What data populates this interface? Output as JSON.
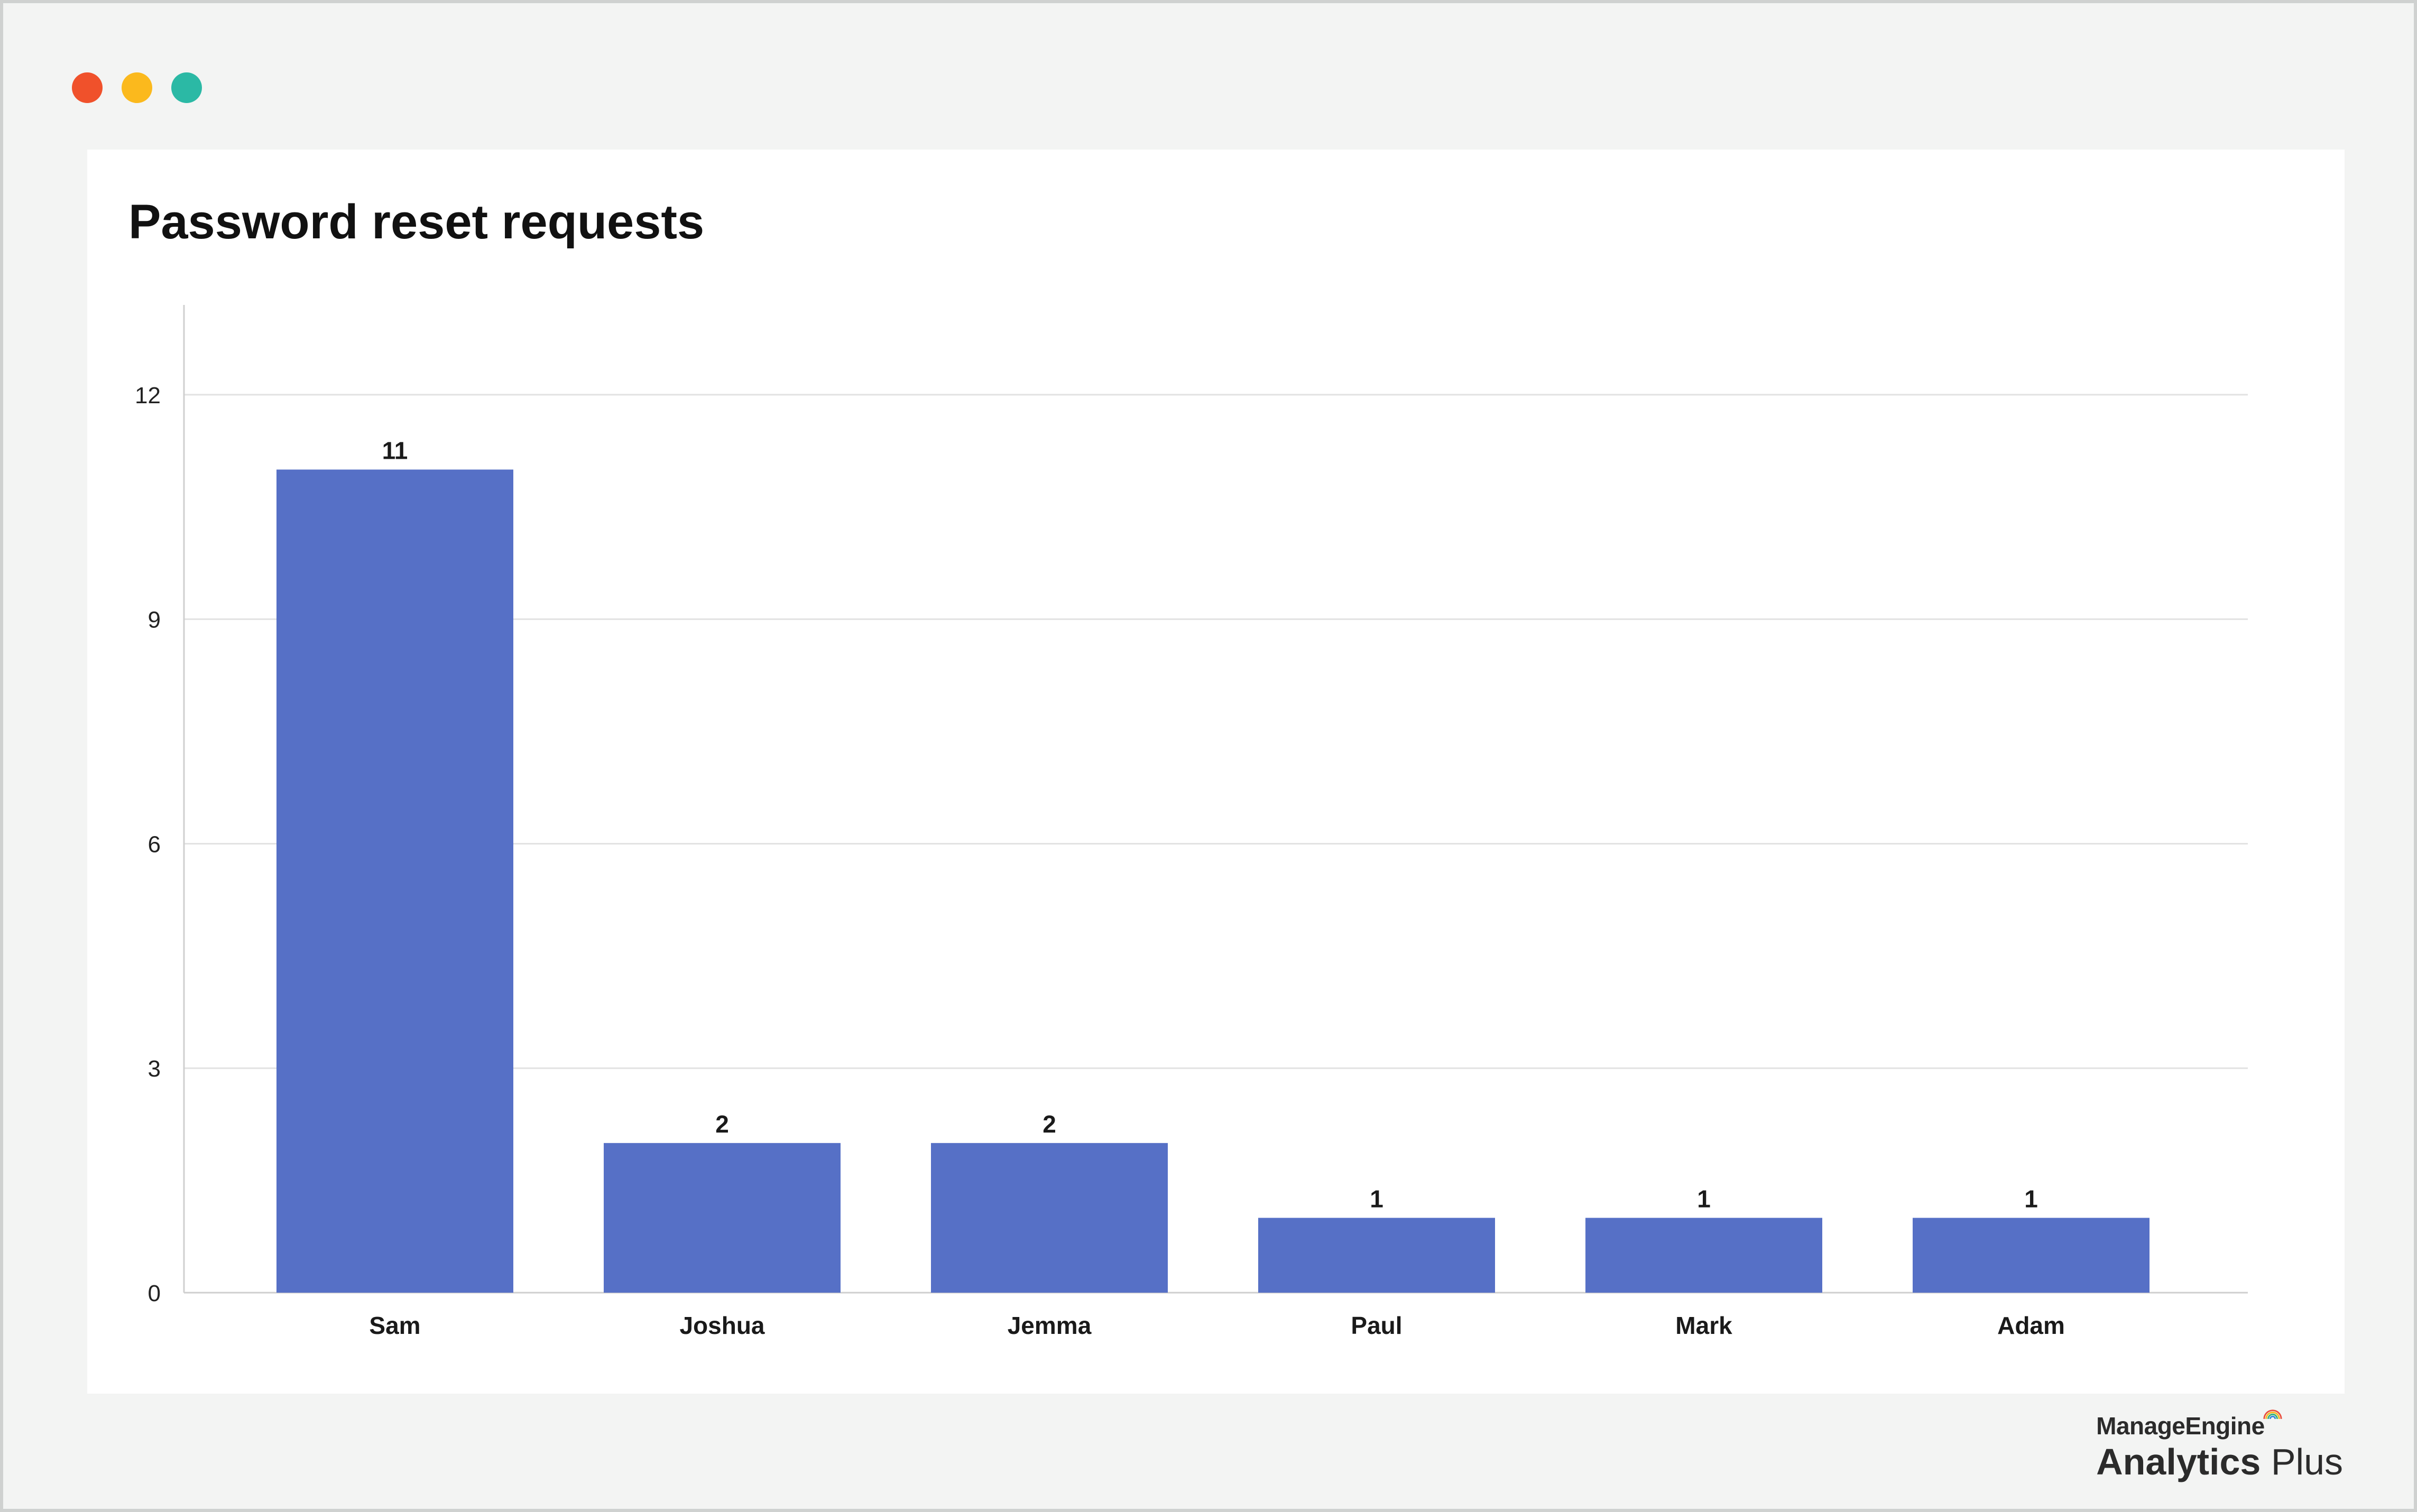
{
  "window": {
    "traffic_lights": [
      {
        "name": "close",
        "color": "#f0512b"
      },
      {
        "name": "minimize",
        "color": "#fbb91d"
      },
      {
        "name": "maximize",
        "color": "#2bb9a5"
      }
    ]
  },
  "chart_data": {
    "type": "bar",
    "title": "Password reset requests",
    "xlabel": "",
    "ylabel": "",
    "categories": [
      "Sam",
      "Joshua",
      "Jemma",
      "Paul",
      "Mark",
      "Adam"
    ],
    "values": [
      11,
      2,
      2,
      1,
      1,
      1
    ],
    "data_labels": [
      "11",
      "2",
      "2",
      "1",
      "1",
      "1"
    ],
    "ylim": [
      0,
      13.2
    ],
    "yticks": [
      0,
      3,
      6,
      9,
      12
    ],
    "ytick_labels": [
      "0",
      "3",
      "6",
      "9",
      "12"
    ],
    "grid": true,
    "legend": "none",
    "bar_color": "#5670c6"
  },
  "brand": {
    "top": "ManageEngine",
    "bottom_bold": "Analytics",
    "bottom_light": " Plus",
    "arc_colors": [
      "#e94e3d",
      "#f6b81f",
      "#34b17b",
      "#3a86d6"
    ]
  }
}
